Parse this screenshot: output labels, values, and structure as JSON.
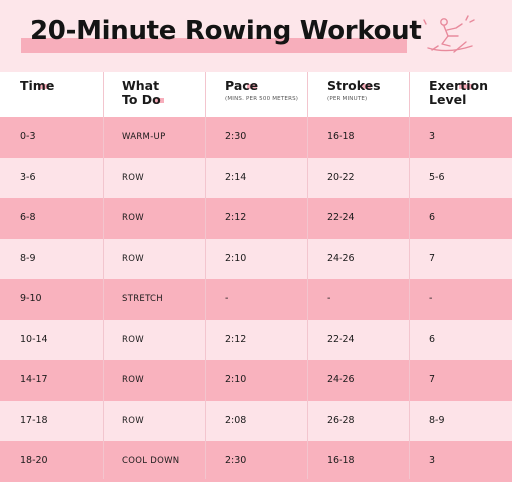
{
  "title": "20-Minute Rowing Workout",
  "headers": {
    "time": "Time",
    "what": "What\nTo Do",
    "pace": "Pace",
    "pace_sub": "(MINS. PER 500 METERS)",
    "strokes": "Strokes",
    "strokes_sub": "(PER MINUTE)",
    "exertion": "Exertion\nLevel"
  },
  "rows": [
    {
      "time": "0-3",
      "what": "WARM-UP",
      "pace": "2:30",
      "strokes": "16-18",
      "exertion": "3"
    },
    {
      "time": "3-6",
      "what": "ROW",
      "pace": "2:14",
      "strokes": "20-22",
      "exertion": "5-6"
    },
    {
      "time": "6-8",
      "what": "ROW",
      "pace": "2:12",
      "strokes": "22-24",
      "exertion": "6"
    },
    {
      "time": "8-9",
      "what": "ROW",
      "pace": "2:10",
      "strokes": "24-26",
      "exertion": "7"
    },
    {
      "time": "9-10",
      "what": "STRETCH",
      "pace": "-",
      "strokes": "-",
      "exertion": "-"
    },
    {
      "time": "10-14",
      "what": "ROW",
      "pace": "2:12",
      "strokes": "22-24",
      "exertion": "6"
    },
    {
      "time": "14-17",
      "what": "ROW",
      "pace": "2:10",
      "strokes": "24-26",
      "exertion": "7"
    },
    {
      "time": "17-18",
      "what": "ROW",
      "pace": "2:08",
      "strokes": "26-28",
      "exertion": "8-9"
    },
    {
      "time": "18-20",
      "what": "COOL DOWN",
      "pace": "2:30",
      "strokes": "16-18",
      "exertion": "3"
    }
  ],
  "colors": {
    "banner": "#fde6ea",
    "highlight": "#f7aebb",
    "row_dark": "#f9b2be",
    "row_light": "#fde3e8",
    "icon_stroke": "#e88a9c"
  },
  "icons": {
    "decoration": "rower-icon"
  }
}
